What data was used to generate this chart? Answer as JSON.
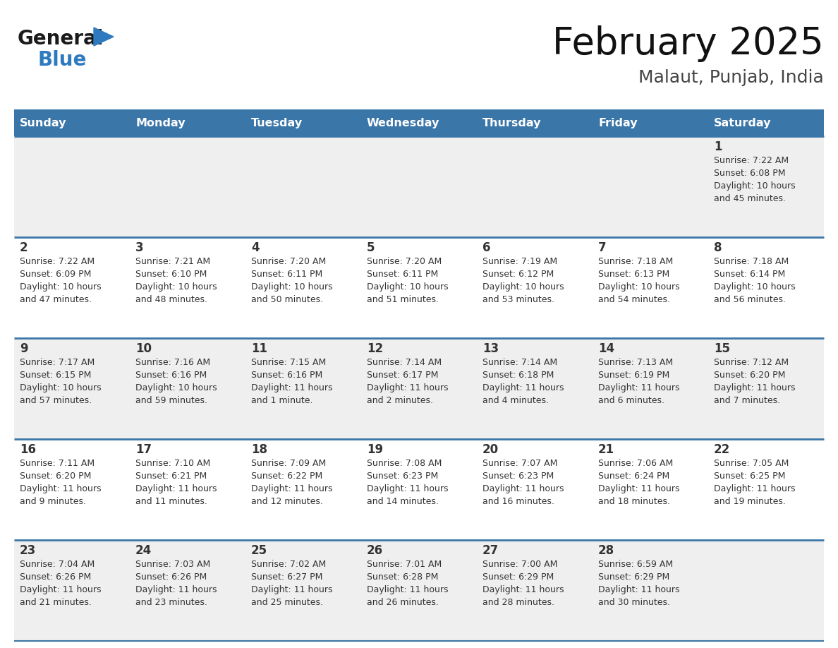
{
  "title": "February 2025",
  "subtitle": "Malaut, Punjab, India",
  "header_bg": "#3a76a8",
  "header_text_color": "#ffffff",
  "cell_bg_light": "#efefef",
  "cell_bg_white": "#ffffff",
  "cell_border_color": "#3a76a8",
  "text_color": "#333333",
  "days_of_week": [
    "Sunday",
    "Monday",
    "Tuesday",
    "Wednesday",
    "Thursday",
    "Friday",
    "Saturday"
  ],
  "calendar_data": [
    [
      null,
      null,
      null,
      null,
      null,
      null,
      {
        "day": "1",
        "sunrise": "7:22 AM",
        "sunset": "6:08 PM",
        "daylight1": "Daylight: 10 hours",
        "daylight2": "and 45 minutes."
      }
    ],
    [
      {
        "day": "2",
        "sunrise": "7:22 AM",
        "sunset": "6:09 PM",
        "daylight1": "Daylight: 10 hours",
        "daylight2": "and 47 minutes."
      },
      {
        "day": "3",
        "sunrise": "7:21 AM",
        "sunset": "6:10 PM",
        "daylight1": "Daylight: 10 hours",
        "daylight2": "and 48 minutes."
      },
      {
        "day": "4",
        "sunrise": "7:20 AM",
        "sunset": "6:11 PM",
        "daylight1": "Daylight: 10 hours",
        "daylight2": "and 50 minutes."
      },
      {
        "day": "5",
        "sunrise": "7:20 AM",
        "sunset": "6:11 PM",
        "daylight1": "Daylight: 10 hours",
        "daylight2": "and 51 minutes."
      },
      {
        "day": "6",
        "sunrise": "7:19 AM",
        "sunset": "6:12 PM",
        "daylight1": "Daylight: 10 hours",
        "daylight2": "and 53 minutes."
      },
      {
        "day": "7",
        "sunrise": "7:18 AM",
        "sunset": "6:13 PM",
        "daylight1": "Daylight: 10 hours",
        "daylight2": "and 54 minutes."
      },
      {
        "day": "8",
        "sunrise": "7:18 AM",
        "sunset": "6:14 PM",
        "daylight1": "Daylight: 10 hours",
        "daylight2": "and 56 minutes."
      }
    ],
    [
      {
        "day": "9",
        "sunrise": "7:17 AM",
        "sunset": "6:15 PM",
        "daylight1": "Daylight: 10 hours",
        "daylight2": "and 57 minutes."
      },
      {
        "day": "10",
        "sunrise": "7:16 AM",
        "sunset": "6:16 PM",
        "daylight1": "Daylight: 10 hours",
        "daylight2": "and 59 minutes."
      },
      {
        "day": "11",
        "sunrise": "7:15 AM",
        "sunset": "6:16 PM",
        "daylight1": "Daylight: 11 hours",
        "daylight2": "and 1 minute."
      },
      {
        "day": "12",
        "sunrise": "7:14 AM",
        "sunset": "6:17 PM",
        "daylight1": "Daylight: 11 hours",
        "daylight2": "and 2 minutes."
      },
      {
        "day": "13",
        "sunrise": "7:14 AM",
        "sunset": "6:18 PM",
        "daylight1": "Daylight: 11 hours",
        "daylight2": "and 4 minutes."
      },
      {
        "day": "14",
        "sunrise": "7:13 AM",
        "sunset": "6:19 PM",
        "daylight1": "Daylight: 11 hours",
        "daylight2": "and 6 minutes."
      },
      {
        "day": "15",
        "sunrise": "7:12 AM",
        "sunset": "6:20 PM",
        "daylight1": "Daylight: 11 hours",
        "daylight2": "and 7 minutes."
      }
    ],
    [
      {
        "day": "16",
        "sunrise": "7:11 AM",
        "sunset": "6:20 PM",
        "daylight1": "Daylight: 11 hours",
        "daylight2": "and 9 minutes."
      },
      {
        "day": "17",
        "sunrise": "7:10 AM",
        "sunset": "6:21 PM",
        "daylight1": "Daylight: 11 hours",
        "daylight2": "and 11 minutes."
      },
      {
        "day": "18",
        "sunrise": "7:09 AM",
        "sunset": "6:22 PM",
        "daylight1": "Daylight: 11 hours",
        "daylight2": "and 12 minutes."
      },
      {
        "day": "19",
        "sunrise": "7:08 AM",
        "sunset": "6:23 PM",
        "daylight1": "Daylight: 11 hours",
        "daylight2": "and 14 minutes."
      },
      {
        "day": "20",
        "sunrise": "7:07 AM",
        "sunset": "6:23 PM",
        "daylight1": "Daylight: 11 hours",
        "daylight2": "and 16 minutes."
      },
      {
        "day": "21",
        "sunrise": "7:06 AM",
        "sunset": "6:24 PM",
        "daylight1": "Daylight: 11 hours",
        "daylight2": "and 18 minutes."
      },
      {
        "day": "22",
        "sunrise": "7:05 AM",
        "sunset": "6:25 PM",
        "daylight1": "Daylight: 11 hours",
        "daylight2": "and 19 minutes."
      }
    ],
    [
      {
        "day": "23",
        "sunrise": "7:04 AM",
        "sunset": "6:26 PM",
        "daylight1": "Daylight: 11 hours",
        "daylight2": "and 21 minutes."
      },
      {
        "day": "24",
        "sunrise": "7:03 AM",
        "sunset": "6:26 PM",
        "daylight1": "Daylight: 11 hours",
        "daylight2": "and 23 minutes."
      },
      {
        "day": "25",
        "sunrise": "7:02 AM",
        "sunset": "6:27 PM",
        "daylight1": "Daylight: 11 hours",
        "daylight2": "and 25 minutes."
      },
      {
        "day": "26",
        "sunrise": "7:01 AM",
        "sunset": "6:28 PM",
        "daylight1": "Daylight: 11 hours",
        "daylight2": "and 26 minutes."
      },
      {
        "day": "27",
        "sunrise": "7:00 AM",
        "sunset": "6:29 PM",
        "daylight1": "Daylight: 11 hours",
        "daylight2": "and 28 minutes."
      },
      {
        "day": "28",
        "sunrise": "6:59 AM",
        "sunset": "6:29 PM",
        "daylight1": "Daylight: 11 hours",
        "daylight2": "and 30 minutes."
      },
      null
    ]
  ]
}
